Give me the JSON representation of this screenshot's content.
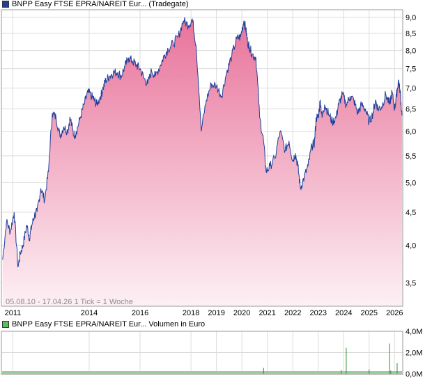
{
  "chart_data": [
    {
      "type": "area",
      "legend_text": "BNPP Easy FTSE EPRA/NAREIT Eur... (Tradegate)",
      "info_text": "05.08.10 - 17.04.26   1 Tick = 1 Woche",
      "x_ticks": [
        "2011",
        "2014",
        "2016",
        "2018",
        "2019",
        "2020",
        "2021",
        "2022",
        "2023",
        "2024",
        "2025",
        "2026"
      ],
      "x_tick_years": [
        2011,
        2014,
        2016,
        2018,
        2019,
        2020,
        2021,
        2022,
        2023,
        2024,
        2025,
        2026
      ],
      "y_ticks": [
        "3,5",
        "4,0",
        "4,5",
        "5,0",
        "5,5",
        "6,0",
        "6,5",
        "7,0",
        "7,5",
        "8,0",
        "8,5",
        "9,0"
      ],
      "y_tick_values": [
        3.5,
        4.0,
        4.5,
        5.0,
        5.5,
        6.0,
        6.5,
        7.0,
        7.5,
        8.0,
        8.5,
        9.0
      ],
      "y_scale": "log",
      "grid": true,
      "series": [
        {
          "color": "#1f3f9a",
          "fill_top": "#e8739a",
          "fill_bottom": "#fdf0f5",
          "x": [
            2010.6,
            2010.75,
            2010.9,
            2011.05,
            2011.2,
            2011.3,
            2011.4,
            2011.55,
            2011.65,
            2011.75,
            2011.85,
            2011.95,
            2012.1,
            2012.25,
            2012.4,
            2012.55,
            2012.7,
            2012.85,
            2013.0,
            2013.15,
            2013.25,
            2013.4,
            2013.5,
            2013.65,
            2013.8,
            2013.95,
            2014.1,
            2014.2,
            2014.3,
            2014.45,
            2014.55,
            2014.65,
            2014.8,
            2014.95,
            2015.1,
            2015.25,
            2015.4,
            2015.55,
            2015.7,
            2015.85,
            2016.0,
            2016.15,
            2016.3,
            2016.45,
            2016.6,
            2016.8,
            2016.95,
            2017.1,
            2017.3,
            2017.5,
            2017.7,
            2017.9,
            2018.05,
            2018.2,
            2018.4,
            2018.6,
            2018.8,
            2019.0,
            2019.2,
            2019.4,
            2019.6,
            2019.8,
            2019.95,
            2020.08,
            2020.15,
            2020.22,
            2020.3,
            2020.4,
            2020.55,
            2020.7,
            2020.85,
            2020.95,
            2021.1,
            2021.3,
            2021.5,
            2021.7,
            2021.85,
            2022.0,
            2022.1,
            2022.2,
            2022.3,
            2022.45,
            2022.6,
            2022.75,
            2022.85,
            2022.92,
            2023.0,
            2023.08,
            2023.15,
            2023.25,
            2023.4,
            2023.55,
            2023.7,
            2023.8,
            2023.95,
            2024.1,
            2024.25,
            2024.4,
            2024.55,
            2024.7,
            2024.85,
            2025.0,
            2025.15,
            2025.25,
            2025.35,
            2025.5,
            2025.65,
            2025.8,
            2025.9,
            2026.0,
            2026.07,
            2026.15,
            2026.22,
            2026.29
          ],
          "values": [
            3.8,
            4.35,
            4.2,
            4.5,
            3.7,
            3.9,
            4.0,
            4.3,
            4.1,
            4.3,
            4.45,
            4.5,
            4.9,
            4.7,
            5.2,
            6.4,
            6.3,
            5.9,
            6.1,
            6.0,
            6.3,
            5.9,
            6.0,
            6.3,
            6.6,
            6.9,
            6.8,
            6.7,
            6.6,
            6.8,
            7.0,
            7.2,
            7.3,
            7.4,
            7.4,
            7.3,
            7.55,
            7.8,
            7.7,
            7.6,
            7.5,
            7.25,
            7.1,
            7.45,
            7.3,
            7.6,
            7.85,
            8.05,
            8.2,
            8.4,
            8.9,
            8.75,
            8.95,
            8.15,
            6.0,
            6.7,
            7.1,
            7.05,
            6.8,
            7.4,
            7.85,
            8.35,
            8.4,
            8.9,
            8.65,
            8.25,
            8.1,
            7.9,
            7.8,
            6.3,
            5.8,
            5.2,
            5.3,
            5.45,
            6.0,
            5.6,
            5.8,
            5.4,
            5.55,
            5.3,
            4.9,
            5.1,
            5.3,
            5.7,
            5.75,
            6.3,
            6.3,
            6.7,
            6.3,
            6.6,
            6.4,
            6.2,
            6.3,
            6.6,
            6.85,
            6.6,
            6.8,
            6.7,
            6.4,
            6.6,
            6.5,
            6.2,
            6.4,
            6.7,
            6.5,
            6.55,
            6.85,
            6.6,
            6.9,
            6.5,
            6.8,
            7.2,
            6.9,
            6.35
          ]
        }
      ]
    },
    {
      "type": "bar",
      "legend_text": "BNPP Easy FTSE EPRA/NAREIT Eur... Volumen in Euro",
      "x_ticks": [
        "2011",
        "2014",
        "2016",
        "2018",
        "2019",
        "2020",
        "2021",
        "2022",
        "2023",
        "2024",
        "2025",
        "2026"
      ],
      "x_tick_years": [
        2011,
        2014,
        2016,
        2018,
        2019,
        2020,
        2021,
        2022,
        2023,
        2024,
        2025,
        2026
      ],
      "y_ticks": [
        "0,0M",
        "2,0M",
        "4,0M"
      ],
      "y_tick_values": [
        0,
        2.0,
        4.0
      ],
      "ylim": [
        0,
        4.0
      ],
      "grid": true,
      "series": [
        {
          "color": "#2e8b2e",
          "spike_color": "#cc3333",
          "x": [
            2020.85,
            2023.9,
            2024.1,
            2025.0,
            2025.8,
            2025.85,
            2026.1
          ],
          "values": [
            0.55,
            0.35,
            2.45,
            0.4,
            2.85,
            0.3,
            1.0
          ],
          "spike_flags": [
            true,
            false,
            false,
            false,
            false,
            false,
            false
          ]
        }
      ]
    }
  ]
}
